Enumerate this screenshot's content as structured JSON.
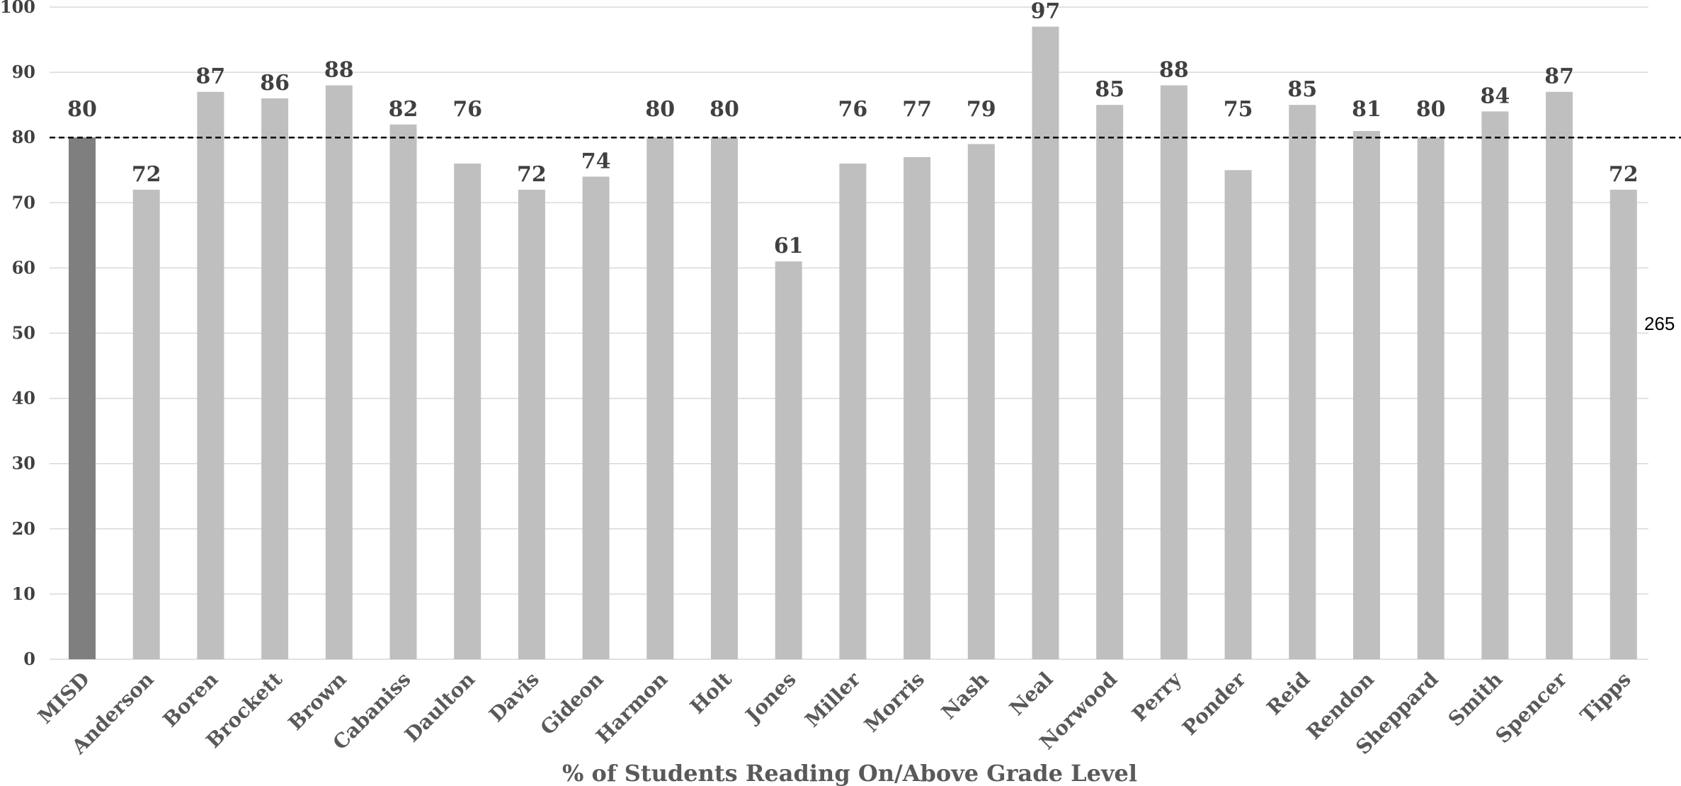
{
  "chart_data": {
    "type": "bar",
    "categories": [
      "MISD",
      "Anderson",
      "Boren",
      "Brockett",
      "Brown",
      "Cabaniss",
      "Daulton",
      "Davis",
      "Gideon",
      "Harmon",
      "Holt",
      "Jones",
      "Miller",
      "Morris",
      "Nash",
      "Neal",
      "Norwood",
      "Perry",
      "Ponder",
      "Reid",
      "Rendon",
      "Sheppard",
      "Smith",
      "Spencer",
      "Tipps"
    ],
    "values": [
      80,
      72,
      87,
      86,
      88,
      82,
      76,
      72,
      74,
      80,
      80,
      61,
      76,
      77,
      79,
      97,
      85,
      88,
      75,
      85,
      81,
      80,
      84,
      87,
      72
    ],
    "title": "",
    "xlabel": "% of Students Reading On/Above Grade Level",
    "ylabel": "",
    "ylim": [
      0,
      100
    ],
    "yticks": [
      0,
      10,
      20,
      30,
      40,
      50,
      60,
      70,
      80,
      90,
      100
    ],
    "reference_line": {
      "value": 80,
      "style": "dashed",
      "color": "#000000"
    },
    "grid": true,
    "legend": "none",
    "highlight_category": "MISD",
    "colors": {
      "highlight": "#7f7f7f",
      "bar": "#bfbfbf",
      "grid": "#d9d9d9",
      "label": "#404040"
    },
    "side_note": "265"
  }
}
